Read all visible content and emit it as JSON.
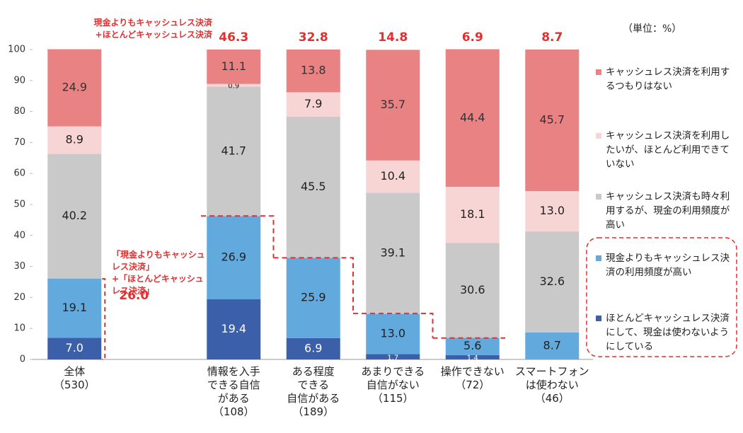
{
  "chart_data": {
    "type": "stacked-bar",
    "unit_note": "（単位：%）",
    "categories": [
      "全体\n（530）",
      null,
      "情報を入手\nできる自信\nがある\n（108）",
      "ある程度\nできる\n自信がある\n（189）",
      "あまりできる\n自信がない\n（115）",
      "操作できない\n（72）",
      "スマートフォン\nは使わない\n（46）"
    ],
    "ylim": [
      0,
      100
    ],
    "yticks": [
      0,
      10,
      20,
      30,
      40,
      50,
      60,
      70,
      80,
      90,
      100
    ],
    "series": [
      {
        "name": "ほとんどキャッシュレス決済にして、現金は使わないようにしている",
        "color": "#3b5fa8",
        "label_color": "#ffffff",
        "values": [
          7.0,
          null,
          19.4,
          6.9,
          1.7,
          1.4,
          0
        ],
        "value_labels": [
          "7.0",
          null,
          "19.4",
          "6.9",
          "1.7",
          "1.4",
          null
        ]
      },
      {
        "name": "現金よりもキャッシュレス決済の利用頻度が高い",
        "color": "#62a9de",
        "label_color": "#222222",
        "values": [
          19.1,
          null,
          26.9,
          25.9,
          13.0,
          5.6,
          8.7
        ],
        "value_labels": [
          "19.1",
          null,
          "26.9",
          "25.9",
          "13.0",
          "5.6",
          "8.7"
        ]
      },
      {
        "name": "キャッシュレス決済も時々利用するが、現金の利用頻度が高い",
        "color": "#c9c9c9",
        "label_color": "#222222",
        "values": [
          40.2,
          null,
          41.7,
          45.5,
          39.1,
          30.6,
          32.6
        ],
        "value_labels": [
          "40.2",
          null,
          "41.7",
          "45.5",
          "39.1",
          "30.6",
          "32.6"
        ]
      },
      {
        "name": "キャッシュレス決済を利用したいが、ほとんど利用できていない",
        "color": "#f8d5d5",
        "label_color": "#222222",
        "values": [
          8.9,
          null,
          0.9,
          7.9,
          10.4,
          18.1,
          13.0
        ],
        "value_labels": [
          "8.9",
          null,
          "0.9",
          "7.9",
          "10.4",
          "18.1",
          "13.0"
        ]
      },
      {
        "name": "キャッシュレス決済を利用するつもりはない",
        "color": "#e98283",
        "label_color": "#333333",
        "values": [
          24.9,
          null,
          11.1,
          13.8,
          35.7,
          44.4,
          45.7
        ],
        "value_labels": [
          "24.9",
          null,
          "11.1",
          "13.8",
          "35.7",
          "44.4",
          "45.7"
        ]
      }
    ],
    "totals": {
      "color": "#e03030",
      "top_annotation": "現金よりもキャッシュレス決済\n+ほとんどキャッシュレス決済",
      "side_annotation": "「現金よりもキャッシュ\nレス決済」\n+「ほとんどキャッシュ\nレス決済」",
      "values": [
        26.0,
        null,
        46.3,
        32.8,
        14.8,
        6.9,
        8.7
      ],
      "value_labels": [
        "26.0",
        null,
        "46.3",
        "32.8",
        "14.8",
        "6.9",
        "8.7"
      ]
    }
  }
}
